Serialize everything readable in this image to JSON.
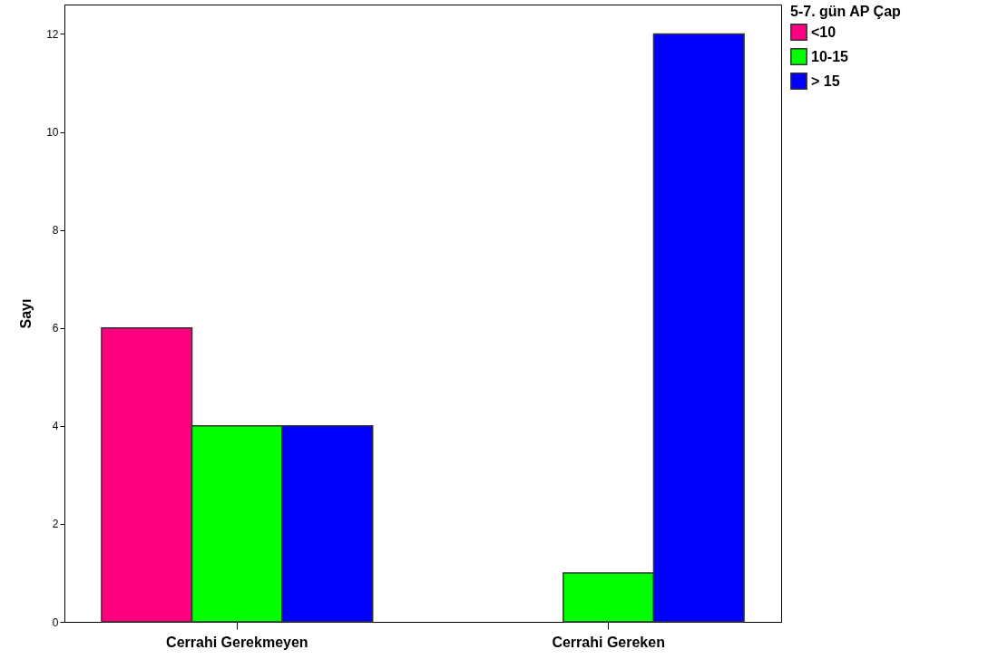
{
  "chart_data": {
    "type": "bar",
    "ylabel": "Sayı",
    "legend_title": "5-7. gün AP Çap",
    "categories": [
      "Cerrahi Gerekmeyen",
      "Cerrahi Gereken"
    ],
    "series": [
      {
        "name": "<10",
        "color": "#ff0080",
        "values": [
          6,
          null
        ]
      },
      {
        "name": "10-15",
        "color": "#00ff00",
        "values": [
          4,
          1
        ]
      },
      {
        "name": "> 15",
        "color": "#0000ff",
        "values": [
          4,
          12
        ]
      }
    ],
    "ylim": [
      0,
      12.6
    ],
    "yticks": [
      0,
      2,
      4,
      6,
      8,
      10,
      12
    ],
    "grid": false,
    "legend": "top right"
  }
}
